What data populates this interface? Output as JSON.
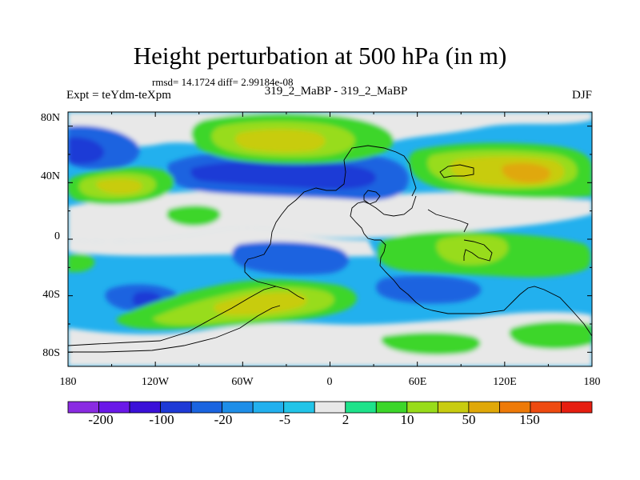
{
  "title": "Height perturbation at 500 hPa (in m)",
  "stats": "rmsd= 14.1724 diff= 2.99184e-08",
  "expt": "Expt = teYdm-teXpm",
  "subtitle": "319_2_MaBP - 319_2_MaBP",
  "season": "DJF",
  "y_ticks": [
    "80N",
    "40N",
    "0",
    "40S",
    "80S"
  ],
  "x_ticks": [
    "180",
    "120W",
    "60W",
    "0",
    "60E",
    "120E",
    "180"
  ],
  "colorbar": {
    "colors": [
      "#8a2be2",
      "#6a18e8",
      "#3a10d8",
      "#1e3ad6",
      "#1a64e0",
      "#1e8ee8",
      "#22b0ee",
      "#22c4e8",
      "#e8e8e8",
      "#1ee28a",
      "#3cd62a",
      "#98dc1a",
      "#c8cc10",
      "#e0a808",
      "#ee7a08",
      "#ee4a10",
      "#e61e10"
    ],
    "labels": [
      "-200",
      "-100",
      "-20",
      "-5",
      "2",
      "10",
      "50",
      "150"
    ]
  },
  "background_color": "#22b0ee"
}
